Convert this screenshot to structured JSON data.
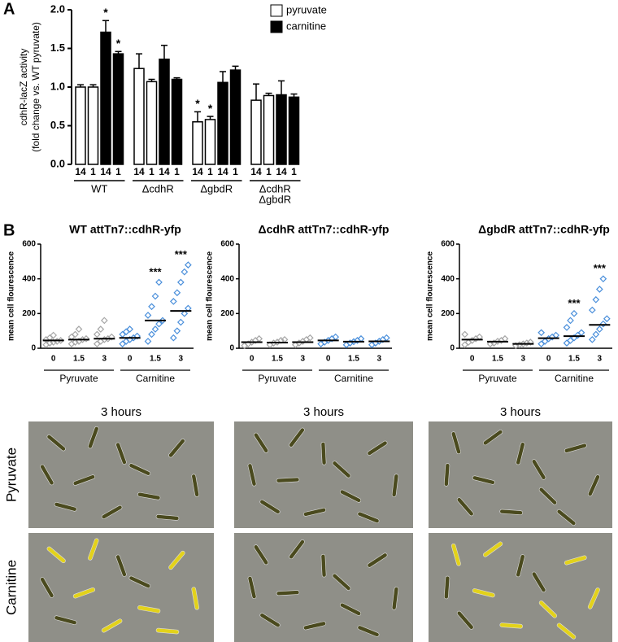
{
  "panel_labels": [
    "A",
    "B"
  ],
  "chart_data": [
    {
      "type": "bar",
      "y_label": [
        "cdhR-lacZ activity",
        "(fold change vs. WT pyruvate)"
      ],
      "categories": [
        "14",
        "1",
        "14",
        "1",
        "14",
        "1",
        "14",
        "1",
        "14",
        "1",
        "14",
        "1",
        "14",
        "1",
        "14",
        "1"
      ],
      "groups": [
        [
          "WT"
        ],
        [
          "ΔcdhR"
        ],
        [
          "ΔgbdR"
        ],
        [
          "ΔcdhR",
          "ΔgbdR"
        ]
      ],
      "series": [
        {
          "name": "pyruvate",
          "color": "#ffffff",
          "values": [
            1.0,
            1.0,
            null,
            null,
            1.24,
            1.07,
            null,
            null,
            0.55,
            0.58,
            null,
            null,
            0.83,
            0.89,
            null,
            null
          ],
          "errors": [
            0.03,
            0.03,
            null,
            null,
            0.19,
            0.03,
            null,
            null,
            0.13,
            0.04,
            null,
            null,
            0.21,
            0.03,
            null,
            null
          ]
        },
        {
          "name": "carnitine",
          "color": "#000000",
          "values": [
            null,
            null,
            1.71,
            1.43,
            null,
            null,
            1.36,
            1.1,
            null,
            null,
            1.06,
            1.22,
            null,
            null,
            0.9,
            0.87
          ],
          "errors": [
            null,
            null,
            0.15,
            0.03,
            null,
            null,
            0.18,
            0.02,
            null,
            null,
            0.14,
            0.05,
            null,
            null,
            0.18,
            0.04
          ]
        }
      ],
      "significance": [
        null,
        null,
        "*",
        "*",
        null,
        null,
        null,
        null,
        "*",
        "*",
        null,
        null,
        null,
        null,
        null,
        null
      ],
      "ylim": [
        0,
        2
      ],
      "yticks": [
        {
          "value": 0,
          "label": "0.0"
        },
        {
          "value": 0.5,
          "label": "0.5"
        },
        {
          "value": 1,
          "label": "1.0"
        },
        {
          "value": 1.5,
          "label": "1.5"
        },
        {
          "value": 2,
          "label": "2.0"
        }
      ],
      "legend": "top-right"
    },
    {
      "type": "strip",
      "title": "WT attTn7::cdhR-yfp",
      "y_label": "mean cell flourescence",
      "categories": [
        "0",
        "1.5",
        "3",
        "0",
        "1.5",
        "3"
      ],
      "groups": [
        "Pyruvate",
        "Carnitine"
      ],
      "colors": [
        "#a6a6a6",
        "#4a8fdb"
      ],
      "points": [
        [
          20,
          30,
          35,
          40,
          45,
          50,
          60,
          75
        ],
        [
          25,
          35,
          40,
          50,
          55,
          65,
          80,
          110
        ],
        [
          25,
          40,
          50,
          55,
          65,
          80,
          110,
          160
        ],
        [
          25,
          40,
          50,
          60,
          70,
          80,
          95,
          110
        ],
        [
          40,
          80,
          110,
          140,
          160,
          190,
          240,
          300,
          380
        ],
        [
          60,
          100,
          150,
          200,
          230,
          270,
          320,
          380,
          440,
          480
        ]
      ],
      "means": [
        45,
        50,
        55,
        60,
        160,
        215
      ],
      "significance": [
        null,
        null,
        null,
        null,
        "***",
        "***"
      ],
      "ylim": [
        0,
        600
      ],
      "yticks": [
        0,
        200,
        400,
        600
      ]
    },
    {
      "type": "strip",
      "title": "ΔcdhR attTn7::cdhR-yfp",
      "y_label": "mean cell flourescence",
      "categories": [
        "0",
        "1.5",
        "3",
        "0",
        "1.5",
        "3"
      ],
      "groups": [
        "Pyruvate",
        "Carnitine"
      ],
      "colors": [
        "#a6a6a6",
        "#4a8fdb"
      ],
      "points": [
        [
          15,
          25,
          35,
          45,
          55
        ],
        [
          20,
          30,
          35,
          45,
          50
        ],
        [
          20,
          30,
          40,
          50,
          60
        ],
        [
          25,
          35,
          45,
          55,
          65
        ],
        [
          20,
          30,
          38,
          45,
          55
        ],
        [
          20,
          30,
          40,
          50,
          60
        ]
      ],
      "means": [
        35,
        33,
        35,
        45,
        38,
        40
      ],
      "significance": [
        null,
        null,
        null,
        null,
        null,
        null
      ],
      "ylim": [
        0,
        600
      ],
      "yticks": [
        0,
        200,
        400,
        600
      ]
    },
    {
      "type": "strip",
      "title": "ΔgbdR attTn7::cdhR-yfp",
      "y_label": "mean cell flourescence",
      "categories": [
        "0",
        "1.5",
        "3",
        "0",
        "1.5",
        "3"
      ],
      "groups": [
        "Pyruvate",
        "Carnitine"
      ],
      "colors": [
        "#a6a6a6",
        "#4a8fdb"
      ],
      "points": [
        [
          20,
          35,
          45,
          55,
          65,
          80
        ],
        [
          25,
          30,
          40,
          45,
          55
        ],
        [
          15,
          20,
          25,
          30,
          35
        ],
        [
          25,
          40,
          55,
          65,
          75,
          90
        ],
        [
          30,
          45,
          60,
          75,
          90,
          120,
          160,
          200
        ],
        [
          50,
          80,
          110,
          140,
          170,
          220,
          280,
          340,
          400
        ]
      ],
      "means": [
        50,
        38,
        25,
        58,
        70,
        135
      ],
      "significance": [
        null,
        null,
        null,
        null,
        "***",
        "***"
      ],
      "ylim": [
        0,
        600
      ],
      "yticks": [
        0,
        200,
        400,
        600
      ]
    }
  ],
  "micrographs": {
    "column_titles": [
      "3 hours",
      "3 hours",
      "3 hours"
    ],
    "row_labels": [
      "Pyruvate",
      "Carnitine"
    ]
  }
}
